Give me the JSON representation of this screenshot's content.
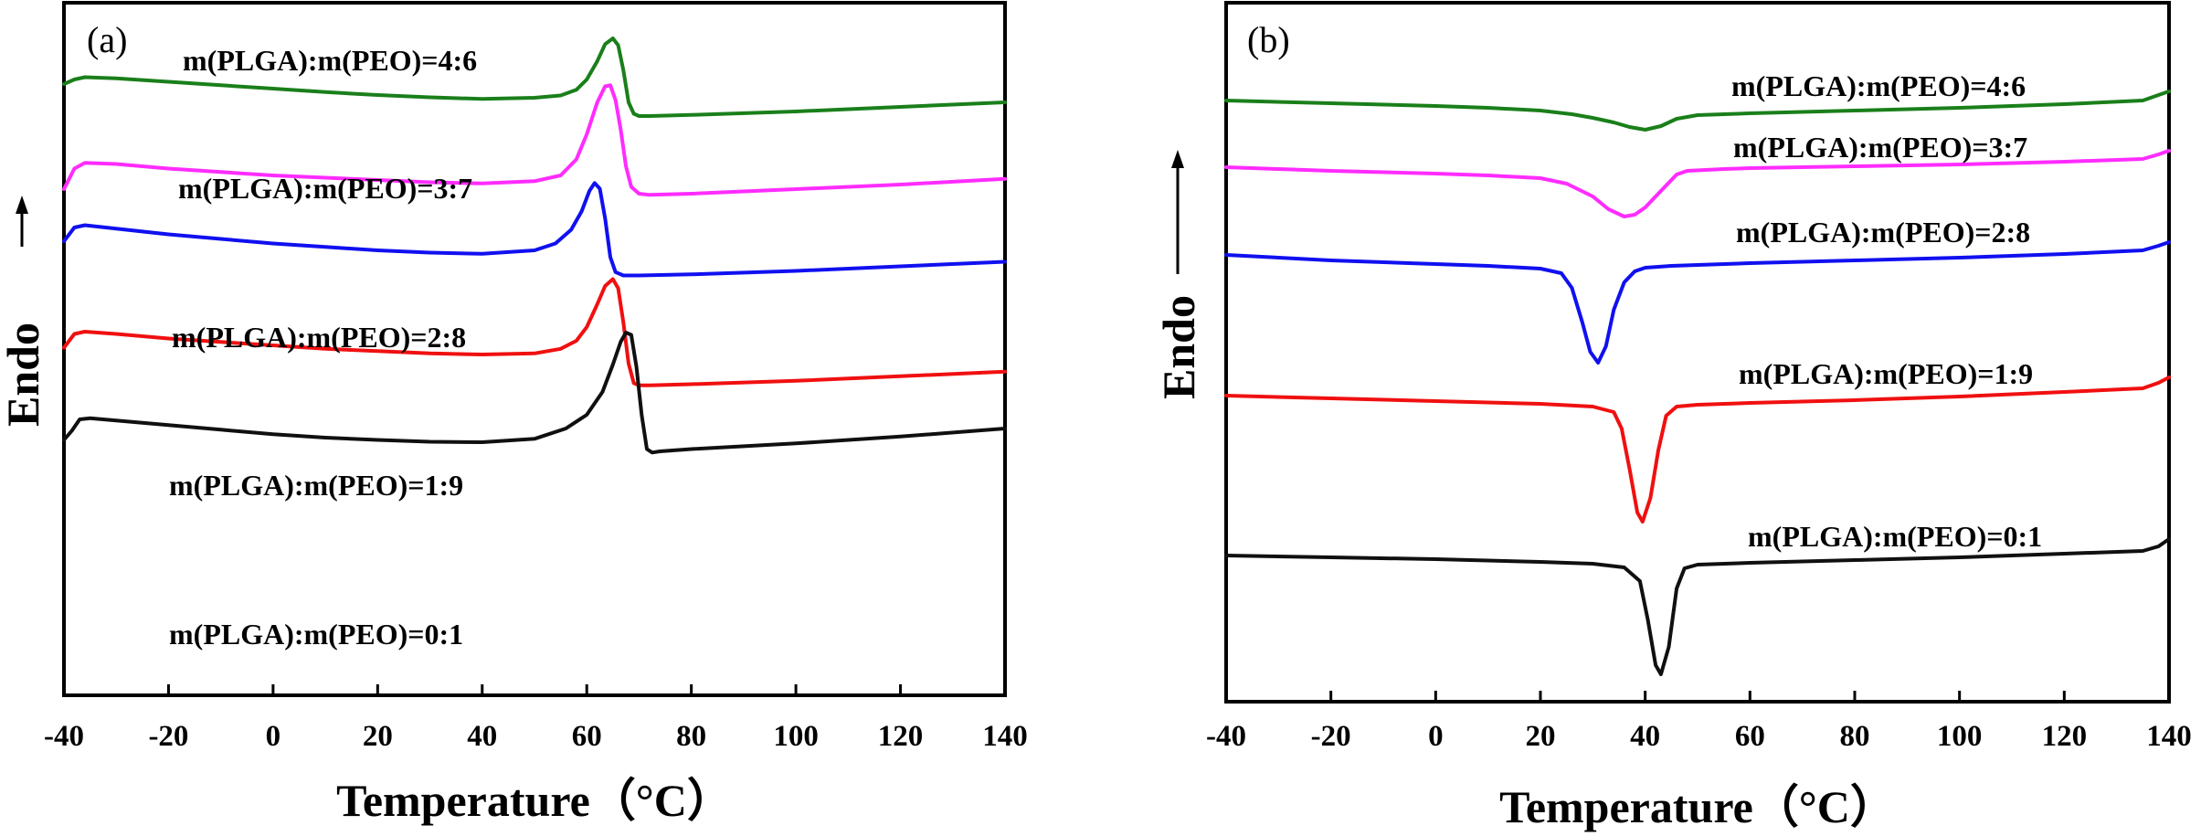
{
  "chart_data": [
    {
      "panel": "(a)",
      "type": "line",
      "xlabel": "Temperature（°C）",
      "ylabel": "Endo",
      "xlim": [
        -40,
        140
      ],
      "xticks": [
        -40,
        -20,
        0,
        20,
        40,
        60,
        80,
        100,
        120,
        140
      ],
      "y_ticks_shown": false,
      "direction_arrow": "up",
      "series": [
        {
          "name": "m(PLGA):m(PEO)=4:6",
          "color": "#1a7f1a",
          "x": [
            -40,
            -38,
            -36,
            -30,
            -20,
            -10,
            0,
            10,
            20,
            30,
            40,
            50,
            55,
            58,
            60,
            62,
            63.5,
            65,
            66,
            67,
            68,
            69,
            70,
            72,
            80,
            100,
            120,
            140
          ],
          "y": [
            0.2,
            0.4,
            0.5,
            0.45,
            0.3,
            0.15,
            0,
            -0.15,
            -0.28,
            -0.38,
            -0.45,
            -0.4,
            -0.3,
            -0.05,
            0.4,
            1.2,
            1.95,
            2.2,
            1.9,
            0.8,
            -0.6,
            -1.1,
            -1.2,
            -1.2,
            -1.15,
            -1.0,
            -0.8,
            -0.6
          ]
        },
        {
          "name": "m(PLGA):m(PEO)=3:7",
          "color": "#ff2cff",
          "x": [
            -40,
            -38,
            -36,
            -30,
            -20,
            -10,
            0,
            10,
            20,
            30,
            40,
            50,
            55,
            58,
            60,
            62,
            63.5,
            64.5,
            65.5,
            66.5,
            67.5,
            68.5,
            70,
            72,
            80,
            100,
            120,
            140
          ],
          "y": [
            -2.2,
            -1.3,
            -1.05,
            -1.1,
            -1.3,
            -1.45,
            -1.6,
            -1.7,
            -1.8,
            -1.9,
            -1.95,
            -1.85,
            -1.6,
            -0.9,
            0.2,
            1.6,
            2.3,
            2.35,
            1.7,
            0.4,
            -1.2,
            -2.1,
            -2.4,
            -2.45,
            -2.4,
            -2.2,
            -2.0,
            -1.75
          ]
        },
        {
          "name": "m(PLGA):m(PEO)=2:8",
          "color": "#1010f0",
          "x": [
            -40,
            -38,
            -36,
            -30,
            -20,
            -10,
            0,
            10,
            20,
            30,
            40,
            50,
            54,
            57,
            59,
            60.5,
            61.5,
            62.5,
            63.5,
            64.5,
            65.5,
            67,
            70,
            80,
            100,
            120,
            140
          ],
          "y": [
            0.0,
            0.6,
            0.7,
            0.55,
            0.3,
            0.1,
            -0.1,
            -0.25,
            -0.4,
            -0.5,
            -0.55,
            -0.4,
            -0.1,
            0.5,
            1.3,
            2.2,
            2.55,
            2.3,
            1.0,
            -0.7,
            -1.35,
            -1.5,
            -1.5,
            -1.45,
            -1.3,
            -1.1,
            -0.9
          ]
        },
        {
          "name": "m(PLGA):m(PEO)=1:9",
          "color": "#f01010",
          "x": [
            -40,
            -38,
            -36,
            -30,
            -20,
            -10,
            0,
            10,
            20,
            30,
            40,
            50,
            55,
            58,
            60,
            62,
            63.5,
            65,
            66,
            67,
            68,
            69,
            70,
            72,
            80,
            100,
            120,
            140
          ],
          "y": [
            -0.3,
            0.3,
            0.4,
            0.3,
            0.1,
            -0.05,
            -0.2,
            -0.35,
            -0.45,
            -0.55,
            -0.6,
            -0.55,
            -0.35,
            0.0,
            0.6,
            1.6,
            2.4,
            2.7,
            2.3,
            0.8,
            -1.0,
            -1.85,
            -1.95,
            -1.95,
            -1.9,
            -1.75,
            -1.55,
            -1.35
          ]
        },
        {
          "name": "m(PLGA):m(PEO)=0:1",
          "color": "#101010",
          "x": [
            -40,
            -38.5,
            -37,
            -35,
            -30,
            -20,
            -10,
            0,
            10,
            20,
            30,
            40,
            50,
            56,
            60,
            63,
            65,
            66.5,
            67.5,
            68.5,
            69.5,
            70.5,
            71.5,
            72.5,
            74,
            80,
            100,
            120,
            140
          ],
          "y": [
            -0.3,
            0.1,
            0.6,
            0.65,
            0.55,
            0.35,
            0.15,
            -0.05,
            -0.2,
            -0.3,
            -0.38,
            -0.4,
            -0.25,
            0.2,
            0.8,
            1.8,
            3.0,
            4.0,
            4.4,
            4.3,
            2.9,
            0.8,
            -0.7,
            -0.85,
            -0.8,
            -0.7,
            -0.45,
            -0.15,
            0.2
          ]
        }
      ]
    },
    {
      "panel": "(b)",
      "type": "line",
      "xlabel": "Temperature（°C）",
      "ylabel": "Endo",
      "xlim": [
        -40,
        140
      ],
      "xticks": [
        -40,
        -20,
        0,
        20,
        40,
        60,
        80,
        100,
        120,
        140
      ],
      "y_ticks_shown": false,
      "direction_arrow": "up",
      "series": [
        {
          "name": "m(PLGA):m(PEO)=4:6",
          "color": "#1a7f1a",
          "x": [
            -40,
            -20,
            0,
            10,
            20,
            26,
            30,
            34,
            37,
            40,
            43,
            46,
            50,
            60,
            80,
            100,
            120,
            135,
            138,
            140
          ],
          "y": [
            0,
            -0.15,
            -0.3,
            -0.4,
            -0.55,
            -0.75,
            -0.95,
            -1.2,
            -1.45,
            -1.6,
            -1.4,
            -1.0,
            -0.8,
            -0.7,
            -0.55,
            -0.4,
            -0.2,
            0,
            0.3,
            0.5
          ]
        },
        {
          "name": "m(PLGA):m(PEO)=3:7",
          "color": "#ff2cff",
          "x": [
            -40,
            -20,
            0,
            10,
            20,
            25,
            30,
            33,
            36,
            38,
            40,
            42,
            44,
            46,
            48,
            55,
            60,
            80,
            100,
            120,
            135,
            138,
            140
          ],
          "y": [
            0,
            -0.2,
            -0.35,
            -0.45,
            -0.6,
            -0.9,
            -1.6,
            -2.3,
            -2.7,
            -2.6,
            -2.2,
            -1.6,
            -1.0,
            -0.4,
            -0.2,
            -0.1,
            -0.05,
            0.05,
            0.15,
            0.3,
            0.45,
            0.7,
            0.9
          ]
        },
        {
          "name": "m(PLGA):m(PEO)=2:8",
          "color": "#1010f0",
          "x": [
            -40,
            -20,
            0,
            10,
            20,
            24,
            26,
            28,
            29.5,
            31,
            32.5,
            34,
            36,
            38,
            40,
            45,
            50,
            60,
            80,
            100,
            120,
            135,
            138,
            140
          ],
          "y": [
            0,
            -0.3,
            -0.5,
            -0.6,
            -0.75,
            -1.0,
            -1.8,
            -3.7,
            -5.3,
            -5.9,
            -5.0,
            -3.0,
            -1.5,
            -0.9,
            -0.7,
            -0.6,
            -0.55,
            -0.45,
            -0.3,
            -0.15,
            0.05,
            0.25,
            0.5,
            0.7
          ]
        },
        {
          "name": "m(PLGA):m(PEO)=1:9",
          "color": "#f01010",
          "x": [
            -40,
            -20,
            0,
            20,
            30,
            34,
            35.5,
            37,
            38.5,
            39.5,
            41,
            42.5,
            44,
            46,
            50,
            60,
            80,
            100,
            120,
            135,
            138,
            140
          ],
          "y": [
            0,
            -0.15,
            -0.3,
            -0.45,
            -0.6,
            -0.9,
            -1.8,
            -4.0,
            -6.4,
            -6.9,
            -5.6,
            -3.0,
            -1.1,
            -0.6,
            -0.5,
            -0.4,
            -0.25,
            -0.05,
            0.2,
            0.4,
            0.7,
            1.0
          ]
        },
        {
          "name": "m(PLGA):m(PEO)=0:1",
          "color": "#101010",
          "x": [
            -40,
            -20,
            0,
            20,
            30,
            36,
            39,
            40.5,
            42,
            43,
            44.5,
            46,
            47.5,
            50,
            60,
            80,
            100,
            120,
            135,
            138,
            140
          ],
          "y": [
            0,
            -0.1,
            -0.2,
            -0.35,
            -0.45,
            -0.65,
            -1.4,
            -3.5,
            -6.0,
            -6.5,
            -5.0,
            -1.8,
            -0.7,
            -0.5,
            -0.4,
            -0.25,
            -0.1,
            0.1,
            0.25,
            0.5,
            0.9
          ]
        }
      ]
    }
  ]
}
